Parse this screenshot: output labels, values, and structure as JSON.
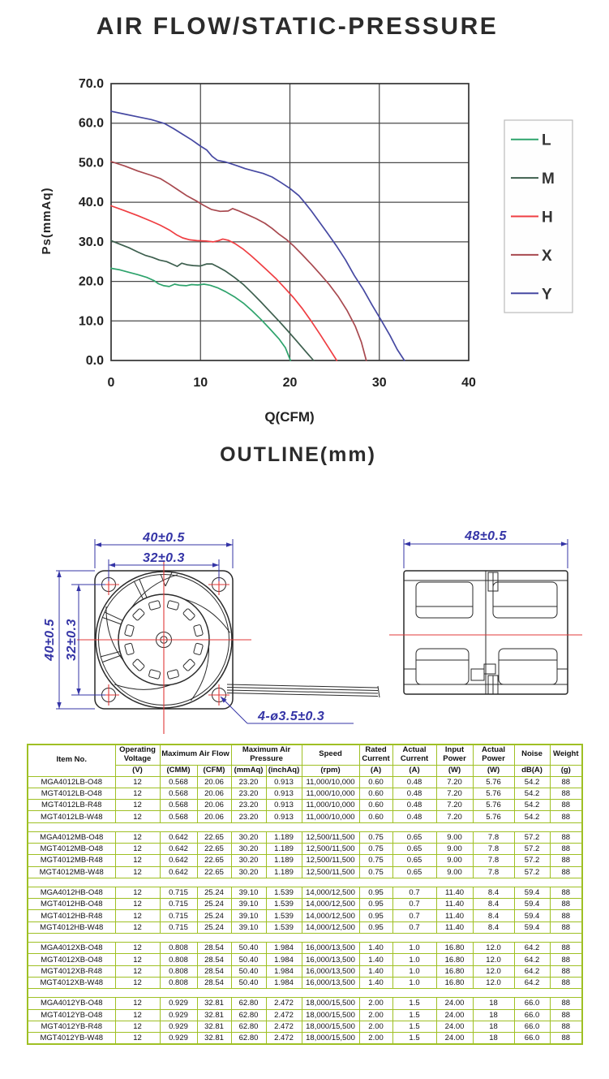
{
  "chart_data": {
    "type": "line",
    "title": "AIR FLOW/STATIC-PRESSURE",
    "xlabel": "Q(CFM)",
    "ylabel": "Ps(mmAq)",
    "xlim": [
      0,
      40
    ],
    "ylim": [
      0,
      70
    ],
    "xticks": [
      "0",
      "10",
      "20",
      "30",
      "40"
    ],
    "yticks": [
      "0.0",
      "10.0",
      "20.0",
      "30.0",
      "40.0",
      "50.0",
      "60.0",
      "70.0"
    ],
    "grid": true,
    "legend_position": "right",
    "series": [
      {
        "name": "L",
        "color": "#2ea36c",
        "points": [
          [
            0,
            23.3
          ],
          [
            1,
            22.9
          ],
          [
            2,
            22.3
          ],
          [
            3,
            21.7
          ],
          [
            4,
            21
          ],
          [
            4.8,
            20.2
          ],
          [
            5.3,
            19.4
          ],
          [
            5.9,
            18.9
          ],
          [
            6.5,
            18.7
          ],
          [
            7.1,
            19.3
          ],
          [
            7.7,
            19
          ],
          [
            8.4,
            18.9
          ],
          [
            9,
            19.2
          ],
          [
            9.7,
            19.1
          ],
          [
            10.4,
            19.3
          ],
          [
            11.1,
            19
          ],
          [
            11.9,
            18.4
          ],
          [
            12.8,
            17.4
          ],
          [
            13.8,
            16.1
          ],
          [
            14.8,
            14.5
          ],
          [
            15.8,
            12.5
          ],
          [
            16.8,
            10.3
          ],
          [
            17.8,
            7.9
          ],
          [
            18.8,
            5.4
          ],
          [
            19.5,
            3.2
          ],
          [
            20.06,
            0
          ]
        ]
      },
      {
        "name": "M",
        "color": "#3d5f4e",
        "points": [
          [
            0,
            30.3
          ],
          [
            1,
            29.4
          ],
          [
            2,
            28.5
          ],
          [
            3,
            27.4
          ],
          [
            3.8,
            26.6
          ],
          [
            4.6,
            26.1
          ],
          [
            5.4,
            25.4
          ],
          [
            6.2,
            25
          ],
          [
            6.9,
            24.3
          ],
          [
            7.4,
            23.8
          ],
          [
            7.9,
            24.6
          ],
          [
            8.5,
            24.2
          ],
          [
            9.2,
            24
          ],
          [
            10,
            23.9
          ],
          [
            10.7,
            24.4
          ],
          [
            11.3,
            24.4
          ],
          [
            12,
            23.6
          ],
          [
            12.8,
            22.6
          ],
          [
            13.8,
            21
          ],
          [
            14.8,
            19.2
          ],
          [
            15.8,
            17
          ],
          [
            16.8,
            14.7
          ],
          [
            17.8,
            12.3
          ],
          [
            18.8,
            9.9
          ],
          [
            19.8,
            7.4
          ],
          [
            20.8,
            4.8
          ],
          [
            21.8,
            2.2
          ],
          [
            22.65,
            0
          ]
        ]
      },
      {
        "name": "H",
        "color": "#ef3e42",
        "points": [
          [
            0,
            39.1
          ],
          [
            1.5,
            37.9
          ],
          [
            3,
            36.6
          ],
          [
            4.5,
            35.2
          ],
          [
            5.5,
            34.2
          ],
          [
            6.5,
            33
          ],
          [
            7.3,
            31.8
          ],
          [
            8,
            31
          ],
          [
            8.8,
            30.5
          ],
          [
            9.6,
            30.3
          ],
          [
            10.6,
            30.2
          ],
          [
            11.4,
            30
          ],
          [
            12,
            30.3
          ],
          [
            12.5,
            30.7
          ],
          [
            13.1,
            30.4
          ],
          [
            13.9,
            29.5
          ],
          [
            14.8,
            28.1
          ],
          [
            15.6,
            26.6
          ],
          [
            16.4,
            25
          ],
          [
            17.4,
            22.9
          ],
          [
            18.4,
            20.8
          ],
          [
            19.4,
            18.4
          ],
          [
            20.4,
            15.9
          ],
          [
            21.4,
            13.1
          ],
          [
            22.4,
            9.9
          ],
          [
            23.4,
            6.5
          ],
          [
            24.4,
            3
          ],
          [
            25.24,
            0
          ]
        ]
      },
      {
        "name": "X",
        "color": "#a8494f",
        "points": [
          [
            0,
            50.3
          ],
          [
            1.5,
            49.2
          ],
          [
            3,
            47.9
          ],
          [
            4.5,
            46.8
          ],
          [
            5.5,
            46
          ],
          [
            6.5,
            44.6
          ],
          [
            7.5,
            43.1
          ],
          [
            8.5,
            41.6
          ],
          [
            9.5,
            40.4
          ],
          [
            10.3,
            39.3
          ],
          [
            11.2,
            38.2
          ],
          [
            12.2,
            37.7
          ],
          [
            13.1,
            37.8
          ],
          [
            13.6,
            38.4
          ],
          [
            14.2,
            37.9
          ],
          [
            15.2,
            36.9
          ],
          [
            16.2,
            35.9
          ],
          [
            17.2,
            34.7
          ],
          [
            18,
            33.4
          ],
          [
            18.8,
            31.9
          ],
          [
            19.6,
            30.6
          ],
          [
            20.4,
            29
          ],
          [
            21.4,
            26.7
          ],
          [
            22.4,
            24.3
          ],
          [
            23.4,
            21.8
          ],
          [
            24.4,
            19.2
          ],
          [
            25.4,
            16.2
          ],
          [
            26.4,
            12.6
          ],
          [
            27.3,
            8.7
          ],
          [
            28,
            4.6
          ],
          [
            28.54,
            0
          ]
        ]
      },
      {
        "name": "Y",
        "color": "#4649a2",
        "points": [
          [
            0,
            63
          ],
          [
            1.5,
            62.3
          ],
          [
            3,
            61.6
          ],
          [
            4.5,
            60.9
          ],
          [
            6,
            59.9
          ],
          [
            7,
            58.6
          ],
          [
            8,
            57.2
          ],
          [
            9,
            55.8
          ],
          [
            10,
            54.2
          ],
          [
            10.7,
            53.2
          ],
          [
            11.3,
            51.6
          ],
          [
            11.9,
            50.6
          ],
          [
            12.8,
            50.2
          ],
          [
            14,
            49.3
          ],
          [
            15,
            48.5
          ],
          [
            16,
            47.9
          ],
          [
            17,
            47.3
          ],
          [
            18,
            46.4
          ],
          [
            19,
            45
          ],
          [
            20,
            43.5
          ],
          [
            21,
            41.7
          ],
          [
            21.6,
            40.1
          ],
          [
            22.4,
            37.8
          ],
          [
            23.3,
            35
          ],
          [
            24.2,
            32.2
          ],
          [
            25.2,
            29
          ],
          [
            26.2,
            25.5
          ],
          [
            27.2,
            21.5
          ],
          [
            28.2,
            18
          ],
          [
            29.2,
            14
          ],
          [
            30.2,
            10.2
          ],
          [
            31.2,
            6.3
          ],
          [
            32,
            2.8
          ],
          [
            32.81,
            0
          ]
        ]
      }
    ]
  },
  "outline": {
    "heading": "OUTLINE(mm)",
    "front_view": {
      "outer_width": "40±0.5",
      "hole_pitch_h": "32±0.3",
      "outer_height": "40±0.5",
      "hole_pitch_v": "32±0.3",
      "mounting_holes": "4-ø3.5±0.3"
    },
    "side_view": {
      "depth": "48±0.5"
    },
    "colors": {
      "dimension": "#3434a6",
      "centerline": "#e03a3a",
      "drawing": "#2a2a2a"
    }
  },
  "table": {
    "border_color": "#9fc024",
    "header_row1": [
      {
        "label": "Item No.",
        "rowspan": 2
      },
      {
        "label": "Operating Voltage"
      },
      {
        "label": "Maximum Air Flow",
        "colspan": 2
      },
      {
        "label": "Maximum Air Pressure",
        "colspan": 2
      },
      {
        "label": "Speed"
      },
      {
        "label": "Rated Current"
      },
      {
        "label": "Actual Current"
      },
      {
        "label": "Input Power"
      },
      {
        "label": "Actual Power"
      },
      {
        "label": "Noise"
      },
      {
        "label": "Weight"
      }
    ],
    "header_row2": [
      "(V)",
      "(CMM)",
      "(CFM)",
      "(mmAq)",
      "(inchAq)",
      "(rpm)",
      "(A)",
      "(A)",
      "(W)",
      "(W)",
      "dB(A)",
      "(g)"
    ],
    "groups": [
      [
        [
          "MGA4012LB-O48",
          "12",
          "0.568",
          "20.06",
          "23.20",
          "0.913",
          "11,000/10,000",
          "0.60",
          "0.48",
          "7.20",
          "5.76",
          "54.2",
          "88"
        ],
        [
          "MGT4012LB-O48",
          "12",
          "0.568",
          "20.06",
          "23.20",
          "0.913",
          "11,000/10,000",
          "0.60",
          "0.48",
          "7.20",
          "5.76",
          "54.2",
          "88"
        ],
        [
          "MGT4012LB-R48",
          "12",
          "0.568",
          "20.06",
          "23.20",
          "0.913",
          "11,000/10,000",
          "0.60",
          "0.48",
          "7.20",
          "5.76",
          "54.2",
          "88"
        ],
        [
          "MGT4012LB-W48",
          "12",
          "0.568",
          "20.06",
          "23.20",
          "0.913",
          "11,000/10,000",
          "0.60",
          "0.48",
          "7.20",
          "5.76",
          "54.2",
          "88"
        ]
      ],
      [
        [
          "MGA4012MB-O48",
          "12",
          "0.642",
          "22.65",
          "30.20",
          "1.189",
          "12,500/11,500",
          "0.75",
          "0.65",
          "9.00",
          "7.8",
          "57.2",
          "88"
        ],
        [
          "MGT4012MB-O48",
          "12",
          "0.642",
          "22.65",
          "30.20",
          "1.189",
          "12,500/11,500",
          "0.75",
          "0.65",
          "9.00",
          "7.8",
          "57.2",
          "88"
        ],
        [
          "MGT4012MB-R48",
          "12",
          "0.642",
          "22.65",
          "30.20",
          "1.189",
          "12,500/11,500",
          "0.75",
          "0.65",
          "9.00",
          "7.8",
          "57.2",
          "88"
        ],
        [
          "MGT4012MB-W48",
          "12",
          "0.642",
          "22.65",
          "30.20",
          "1.189",
          "12,500/11,500",
          "0.75",
          "0.65",
          "9.00",
          "7.8",
          "57.2",
          "88"
        ]
      ],
      [
        [
          "MGA4012HB-O48",
          "12",
          "0.715",
          "25.24",
          "39.10",
          "1.539",
          "14,000/12,500",
          "0.95",
          "0.7",
          "11.40",
          "8.4",
          "59.4",
          "88"
        ],
        [
          "MGT4012HB-O48",
          "12",
          "0.715",
          "25.24",
          "39.10",
          "1.539",
          "14,000/12,500",
          "0.95",
          "0.7",
          "11.40",
          "8.4",
          "59.4",
          "88"
        ],
        [
          "MGT4012HB-R48",
          "12",
          "0.715",
          "25.24",
          "39.10",
          "1.539",
          "14,000/12,500",
          "0.95",
          "0.7",
          "11.40",
          "8.4",
          "59.4",
          "88"
        ],
        [
          "MGT4012HB-W48",
          "12",
          "0.715",
          "25.24",
          "39.10",
          "1.539",
          "14,000/12,500",
          "0.95",
          "0.7",
          "11.40",
          "8.4",
          "59.4",
          "88"
        ]
      ],
      [
        [
          "MGA4012XB-O48",
          "12",
          "0.808",
          "28.54",
          "50.40",
          "1.984",
          "16,000/13,500",
          "1.40",
          "1.0",
          "16.80",
          "12.0",
          "64.2",
          "88"
        ],
        [
          "MGT4012XB-O48",
          "12",
          "0.808",
          "28.54",
          "50.40",
          "1.984",
          "16,000/13,500",
          "1.40",
          "1.0",
          "16.80",
          "12.0",
          "64.2",
          "88"
        ],
        [
          "MGT4012XB-R48",
          "12",
          "0.808",
          "28.54",
          "50.40",
          "1.984",
          "16,000/13,500",
          "1.40",
          "1.0",
          "16.80",
          "12.0",
          "64.2",
          "88"
        ],
        [
          "MGT4012XB-W48",
          "12",
          "0.808",
          "28.54",
          "50.40",
          "1.984",
          "16,000/13,500",
          "1.40",
          "1.0",
          "16.80",
          "12.0",
          "64.2",
          "88"
        ]
      ],
      [
        [
          "MGA4012YB-O48",
          "12",
          "0.929",
          "32.81",
          "62.80",
          "2.472",
          "18,000/15,500",
          "2.00",
          "1.5",
          "24.00",
          "18",
          "66.0",
          "88"
        ],
        [
          "MGT4012YB-O48",
          "12",
          "0.929",
          "32.81",
          "62.80",
          "2.472",
          "18,000/15,500",
          "2.00",
          "1.5",
          "24.00",
          "18",
          "66.0",
          "88"
        ],
        [
          "MGT4012YB-R48",
          "12",
          "0.929",
          "32.81",
          "62.80",
          "2.472",
          "18,000/15,500",
          "2.00",
          "1.5",
          "24.00",
          "18",
          "66.0",
          "88"
        ],
        [
          "MGT4012YB-W48",
          "12",
          "0.929",
          "32.81",
          "62.80",
          "2.472",
          "18,000/15,500",
          "2.00",
          "1.5",
          "24.00",
          "18",
          "66.0",
          "88"
        ]
      ]
    ]
  }
}
